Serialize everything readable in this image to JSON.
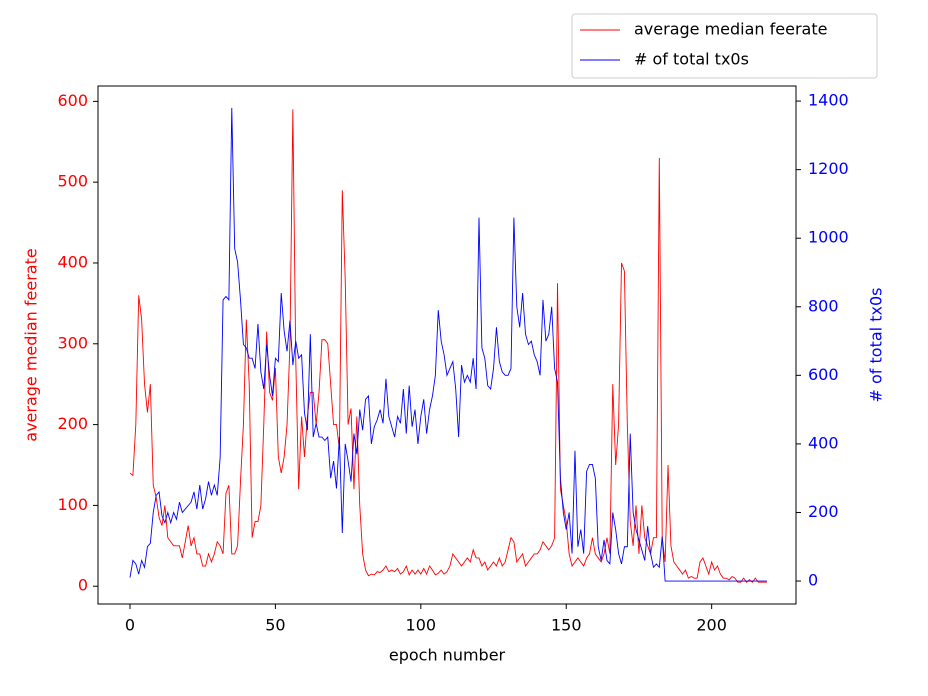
{
  "chart_data": {
    "type": "line",
    "xlabel": "epoch number",
    "ylabel": "average median feerate",
    "y2label": "# of total tx0s",
    "x": [
      0,
      1,
      2,
      3,
      4,
      5,
      6,
      7,
      8,
      9,
      10,
      11,
      12,
      13,
      14,
      15,
      16,
      17,
      18,
      19,
      20,
      21,
      22,
      23,
      24,
      25,
      26,
      27,
      28,
      29,
      30,
      31,
      32,
      33,
      34,
      35,
      36,
      37,
      38,
      39,
      40,
      41,
      42,
      43,
      44,
      45,
      46,
      47,
      48,
      49,
      50,
      51,
      52,
      53,
      54,
      55,
      56,
      57,
      58,
      59,
      60,
      61,
      62,
      63,
      64,
      65,
      66,
      67,
      68,
      69,
      70,
      71,
      72,
      73,
      74,
      75,
      76,
      77,
      78,
      79,
      80,
      81,
      82,
      83,
      84,
      85,
      86,
      87,
      88,
      89,
      90,
      91,
      92,
      93,
      94,
      95,
      96,
      97,
      98,
      99,
      100,
      101,
      102,
      103,
      104,
      105,
      106,
      107,
      108,
      109,
      110,
      111,
      112,
      113,
      114,
      115,
      116,
      117,
      118,
      119,
      120,
      121,
      122,
      123,
      124,
      125,
      126,
      127,
      128,
      129,
      130,
      131,
      132,
      133,
      134,
      135,
      136,
      137,
      138,
      139,
      140,
      141,
      142,
      143,
      144,
      145,
      146,
      147,
      148,
      149,
      150,
      151,
      152,
      153,
      154,
      155,
      156,
      157,
      158,
      159,
      160,
      161,
      162,
      163,
      164,
      165,
      166,
      167,
      168,
      169,
      170,
      171,
      172,
      173,
      174,
      175,
      176,
      177,
      178,
      179,
      180,
      181,
      182,
      183,
      184,
      185,
      186,
      187,
      188,
      189,
      190,
      191,
      192,
      193,
      194,
      195,
      196,
      197,
      198,
      199,
      200,
      201,
      202,
      203,
      204,
      205,
      206,
      207,
      208,
      209,
      210,
      211,
      212,
      213,
      214,
      215,
      216,
      217,
      218,
      219
    ],
    "series": [
      {
        "name": "average median feerate",
        "color": "#ff0000",
        "axis": "y",
        "values": [
          140,
          137,
          200,
          360,
          330,
          250,
          215,
          250,
          125,
          110,
          85,
          75,
          100,
          60,
          55,
          50,
          50,
          50,
          35,
          55,
          75,
          50,
          60,
          40,
          40,
          25,
          25,
          40,
          30,
          40,
          55,
          50,
          40,
          115,
          125,
          40,
          40,
          50,
          130,
          200,
          330,
          250,
          60,
          80,
          80,
          100,
          200,
          315,
          240,
          230,
          270,
          160,
          140,
          160,
          200,
          300,
          590,
          280,
          120,
          210,
          160,
          210,
          240,
          240,
          200,
          240,
          305,
          305,
          300,
          250,
          200,
          200,
          170,
          490,
          380,
          200,
          220,
          120,
          210,
          100,
          40,
          20,
          13,
          15,
          14,
          18,
          17,
          20,
          25,
          18,
          20,
          18,
          22,
          15,
          18,
          25,
          14,
          20,
          15,
          20,
          15,
          22,
          15,
          25,
          20,
          14,
          16,
          20,
          15,
          18,
          25,
          40,
          35,
          30,
          25,
          30,
          35,
          30,
          45,
          35,
          35,
          25,
          30,
          20,
          25,
          30,
          25,
          35,
          25,
          30,
          45,
          60,
          55,
          30,
          35,
          40,
          25,
          30,
          35,
          40,
          40,
          45,
          55,
          50,
          45,
          50,
          60,
          375,
          120,
          100,
          80,
          40,
          25,
          30,
          35,
          30,
          25,
          35,
          40,
          60,
          40,
          35,
          30,
          40,
          60,
          40,
          250,
          150,
          200,
          400,
          390,
          200,
          80,
          50,
          100,
          40,
          100,
          60,
          50,
          40,
          60,
          60,
          530,
          60,
          30,
          150,
          50,
          30,
          25,
          20,
          15,
          20,
          10,
          12,
          10,
          10,
          30,
          35,
          25,
          15,
          30,
          20,
          25,
          15,
          10,
          10,
          8,
          12,
          10,
          5,
          5,
          10,
          5,
          8,
          5,
          10,
          5,
          5,
          5,
          5
        ]
      },
      {
        "name": "# of total tx0s",
        "color": "#0000ff",
        "axis": "y2",
        "values": [
          10,
          60,
          50,
          20,
          60,
          40,
          100,
          110,
          200,
          250,
          260,
          190,
          170,
          200,
          170,
          200,
          180,
          230,
          200,
          210,
          220,
          230,
          260,
          210,
          280,
          210,
          240,
          290,
          250,
          280,
          250,
          360,
          820,
          830,
          820,
          1380,
          970,
          930,
          820,
          690,
          680,
          650,
          650,
          620,
          750,
          610,
          560,
          690,
          600,
          540,
          650,
          640,
          840,
          730,
          670,
          760,
          630,
          700,
          650,
          660,
          490,
          440,
          720,
          420,
          460,
          420,
          420,
          410,
          420,
          300,
          350,
          270,
          420,
          140,
          400,
          350,
          290,
          430,
          370,
          500,
          440,
          530,
          540,
          400,
          450,
          470,
          500,
          460,
          590,
          480,
          450,
          420,
          480,
          460,
          560,
          430,
          570,
          450,
          500,
          400,
          480,
          530,
          430,
          500,
          540,
          600,
          790,
          700,
          660,
          600,
          620,
          640,
          560,
          420,
          630,
          580,
          600,
          580,
          650,
          560,
          1060,
          680,
          650,
          570,
          560,
          620,
          740,
          640,
          610,
          600,
          600,
          620,
          1060,
          800,
          740,
          840,
          720,
          690,
          700,
          660,
          640,
          600,
          820,
          700,
          720,
          800,
          620,
          580,
          300,
          200,
          150,
          200,
          80,
          380,
          100,
          150,
          80,
          320,
          340,
          340,
          300,
          100,
          60,
          120,
          60,
          50,
          200,
          150,
          80,
          50,
          100,
          100,
          430,
          200,
          150,
          120,
          90,
          60,
          160,
          80,
          40,
          50,
          40,
          130,
          0,
          0,
          0,
          0,
          0,
          0,
          0,
          0,
          0,
          0,
          0,
          0,
          0,
          0,
          0,
          0,
          0,
          0,
          0,
          0,
          0,
          0,
          0,
          0,
          0,
          0,
          0,
          0,
          0,
          0,
          0,
          0,
          0,
          0,
          0,
          0
        ]
      }
    ],
    "xlim": [
      -11,
      229
    ],
    "xticks": [
      0,
      50,
      100,
      150,
      200
    ],
    "ylim": [
      -22,
      619
    ],
    "yticks": [
      0,
      100,
      200,
      300,
      400,
      500,
      600
    ],
    "y2lim": [
      -67,
      1444
    ],
    "y2ticks": [
      0,
      200,
      400,
      600,
      800,
      1000,
      1200,
      1400
    ],
    "legend": "upper right"
  }
}
